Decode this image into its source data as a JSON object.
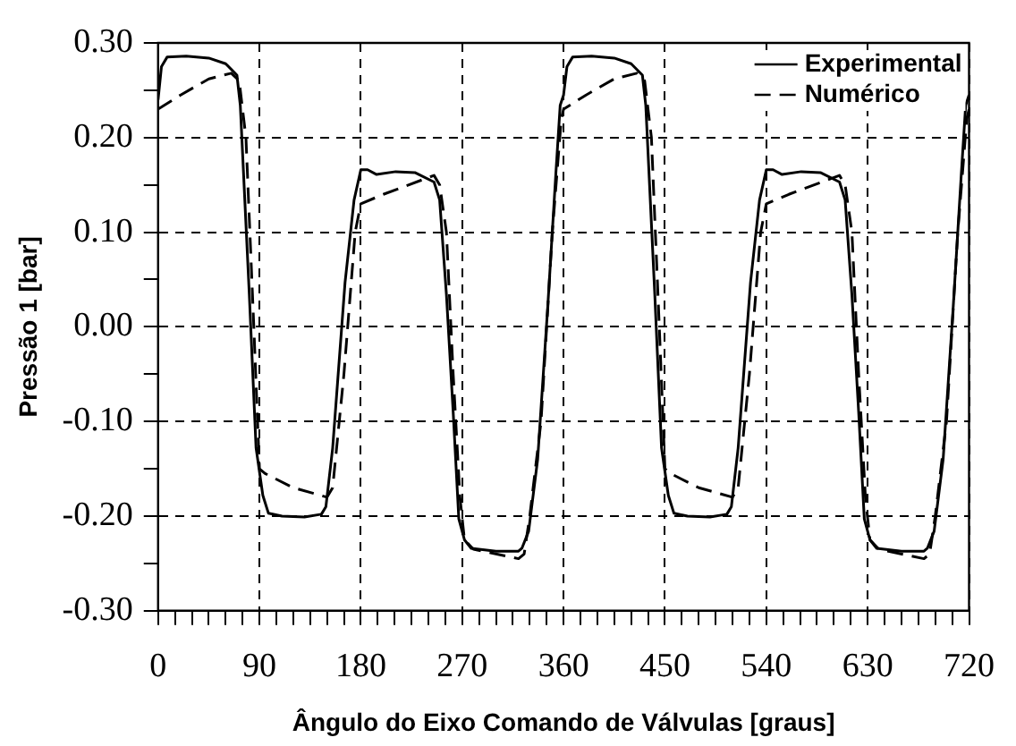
{
  "chart_data": {
    "type": "line",
    "xlabel": "Ângulo do Eixo Comando de Válvulas [graus]",
    "ylabel": "Pressão 1 [bar]",
    "xlim": [
      0,
      720
    ],
    "ylim": [
      -0.3,
      0.3
    ],
    "xticks": [
      0,
      {
        "value": 15,
        "label": null
      },
      {
        "value": 30,
        "label": null
      },
      {
        "value": 45,
        "label": null
      },
      {
        "value": 60,
        "label": null
      },
      {
        "value": 75,
        "label": null
      },
      90,
      {
        "value": 105,
        "label": null
      },
      {
        "value": 120,
        "label": null
      },
      {
        "value": 135,
        "label": null
      },
      {
        "value": 150,
        "label": null
      },
      {
        "value": 165,
        "label": null
      },
      180,
      {
        "value": 195,
        "label": null
      },
      {
        "value": 210,
        "label": null
      },
      {
        "value": 225,
        "label": null
      },
      {
        "value": 240,
        "label": null
      },
      {
        "value": 255,
        "label": null
      },
      270,
      {
        "value": 285,
        "label": null
      },
      {
        "value": 300,
        "label": null
      },
      {
        "value": 315,
        "label": null
      },
      {
        "value": 330,
        "label": null
      },
      {
        "value": 345,
        "label": null
      },
      360,
      {
        "value": 375,
        "label": null
      },
      {
        "value": 390,
        "label": null
      },
      {
        "value": 405,
        "label": null
      },
      {
        "value": 420,
        "label": null
      },
      {
        "value": 435,
        "label": null
      },
      450,
      {
        "value": 465,
        "label": null
      },
      {
        "value": 480,
        "label": null
      },
      {
        "value": 495,
        "label": null
      },
      {
        "value": 510,
        "label": null
      },
      {
        "value": 525,
        "label": null
      },
      540,
      {
        "value": 555,
        "label": null
      },
      {
        "value": 570,
        "label": null
      },
      {
        "value": 585,
        "label": null
      },
      {
        "value": 600,
        "label": null
      },
      {
        "value": 615,
        "label": null
      },
      630,
      {
        "value": 645,
        "label": null
      },
      {
        "value": 660,
        "label": null
      },
      {
        "value": 675,
        "label": null
      },
      {
        "value": 690,
        "label": null
      },
      {
        "value": 705,
        "label": null
      },
      720
    ],
    "yticks": [
      {
        "value": -0.3,
        "label": "-0.30"
      },
      {
        "value": -0.25,
        "label": null
      },
      {
        "value": -0.2,
        "label": "-0.20"
      },
      {
        "value": -0.15,
        "label": null
      },
      {
        "value": -0.1,
        "label": "-0.10"
      },
      {
        "value": -0.05,
        "label": null
      },
      {
        "value": 0,
        "label": "0.00"
      },
      {
        "value": 0.05,
        "label": null
      },
      {
        "value": 0.1,
        "label": "0.10"
      },
      {
        "value": 0.15,
        "label": null
      },
      {
        "value": 0.2,
        "label": "0.20"
      },
      {
        "value": 0.25,
        "label": null
      },
      {
        "value": 0.3,
        "label": "0.30"
      }
    ],
    "grid": true,
    "legend": "top right",
    "marker": "none",
    "series": [
      {
        "name": "Experimental",
        "color": "#000000",
        "line_style": "solid",
        "x": [
          0,
          3,
          8,
          25,
          45,
          60,
          70,
          73,
          81,
          87,
          93,
          98,
          110,
          130,
          145,
          149,
          155,
          166,
          174,
          180,
          186,
          194,
          211,
          228,
          245,
          250,
          256,
          262,
          267,
          272,
          278,
          300,
          320,
          323,
          329,
          337,
          346,
          353,
          357,
          360,
          363,
          368,
          385,
          405,
          420,
          430,
          433,
          441,
          447,
          453,
          458,
          470,
          490,
          505,
          509,
          515,
          526,
          534,
          540,
          546,
          554,
          571,
          588,
          605,
          610,
          616,
          622,
          627,
          632,
          638,
          660,
          680,
          683,
          689,
          697,
          706,
          713,
          717,
          720
        ],
        "values": [
          0.24,
          0.275,
          0.285,
          0.286,
          0.284,
          0.278,
          0.266,
          0.234,
          0.034,
          -0.128,
          -0.178,
          -0.197,
          -0.2,
          -0.201,
          -0.198,
          -0.19,
          -0.128,
          0.047,
          0.134,
          0.166,
          0.166,
          0.161,
          0.164,
          0.163,
          0.153,
          0.134,
          0.034,
          -0.09,
          -0.203,
          -0.225,
          -0.234,
          -0.237,
          -0.237,
          -0.234,
          -0.216,
          -0.14,
          0.022,
          0.159,
          0.234,
          0.245,
          0.275,
          0.285,
          0.286,
          0.284,
          0.278,
          0.266,
          0.234,
          0.034,
          -0.128,
          -0.178,
          -0.197,
          -0.2,
          -0.201,
          -0.198,
          -0.19,
          -0.128,
          0.047,
          0.134,
          0.166,
          0.166,
          0.161,
          0.164,
          0.163,
          0.153,
          0.134,
          0.034,
          -0.09,
          -0.203,
          -0.225,
          -0.234,
          -0.237,
          -0.237,
          -0.234,
          -0.216,
          -0.14,
          0.022,
          0.159,
          0.234,
          0.245
        ]
      },
      {
        "name": "Numérico",
        "color": "#000000",
        "line_style": "dashed",
        "x": [
          0,
          20,
          45,
          65,
          72,
          78,
          85,
          90,
          95,
          120,
          150,
          155,
          165,
          175,
          180,
          200,
          245,
          250,
          256,
          262,
          268,
          272,
          280,
          320,
          325,
          330,
          340,
          350,
          358,
          360,
          380,
          405,
          425,
          432,
          438,
          445,
          450,
          455,
          480,
          510,
          515,
          525,
          535,
          540,
          560,
          605,
          610,
          616,
          622,
          628,
          632,
          640,
          680,
          685,
          690,
          700,
          710,
          718,
          720
        ],
        "values": [
          0.23,
          0.245,
          0.262,
          0.268,
          0.26,
          0.2,
          0.0,
          -0.15,
          -0.155,
          -0.17,
          -0.18,
          -0.17,
          -0.05,
          0.1,
          0.13,
          0.14,
          0.16,
          0.15,
          0.1,
          -0.05,
          -0.18,
          -0.225,
          -0.235,
          -0.245,
          -0.24,
          -0.2,
          -0.1,
          0.1,
          0.22,
          0.23,
          0.245,
          0.262,
          0.268,
          0.26,
          0.2,
          0.0,
          -0.15,
          -0.155,
          -0.17,
          -0.18,
          -0.17,
          -0.05,
          0.1,
          0.13,
          0.14,
          0.16,
          0.15,
          0.1,
          -0.05,
          -0.18,
          -0.225,
          -0.235,
          -0.245,
          -0.24,
          -0.2,
          -0.1,
          0.1,
          0.22,
          0.23
        ]
      }
    ]
  }
}
